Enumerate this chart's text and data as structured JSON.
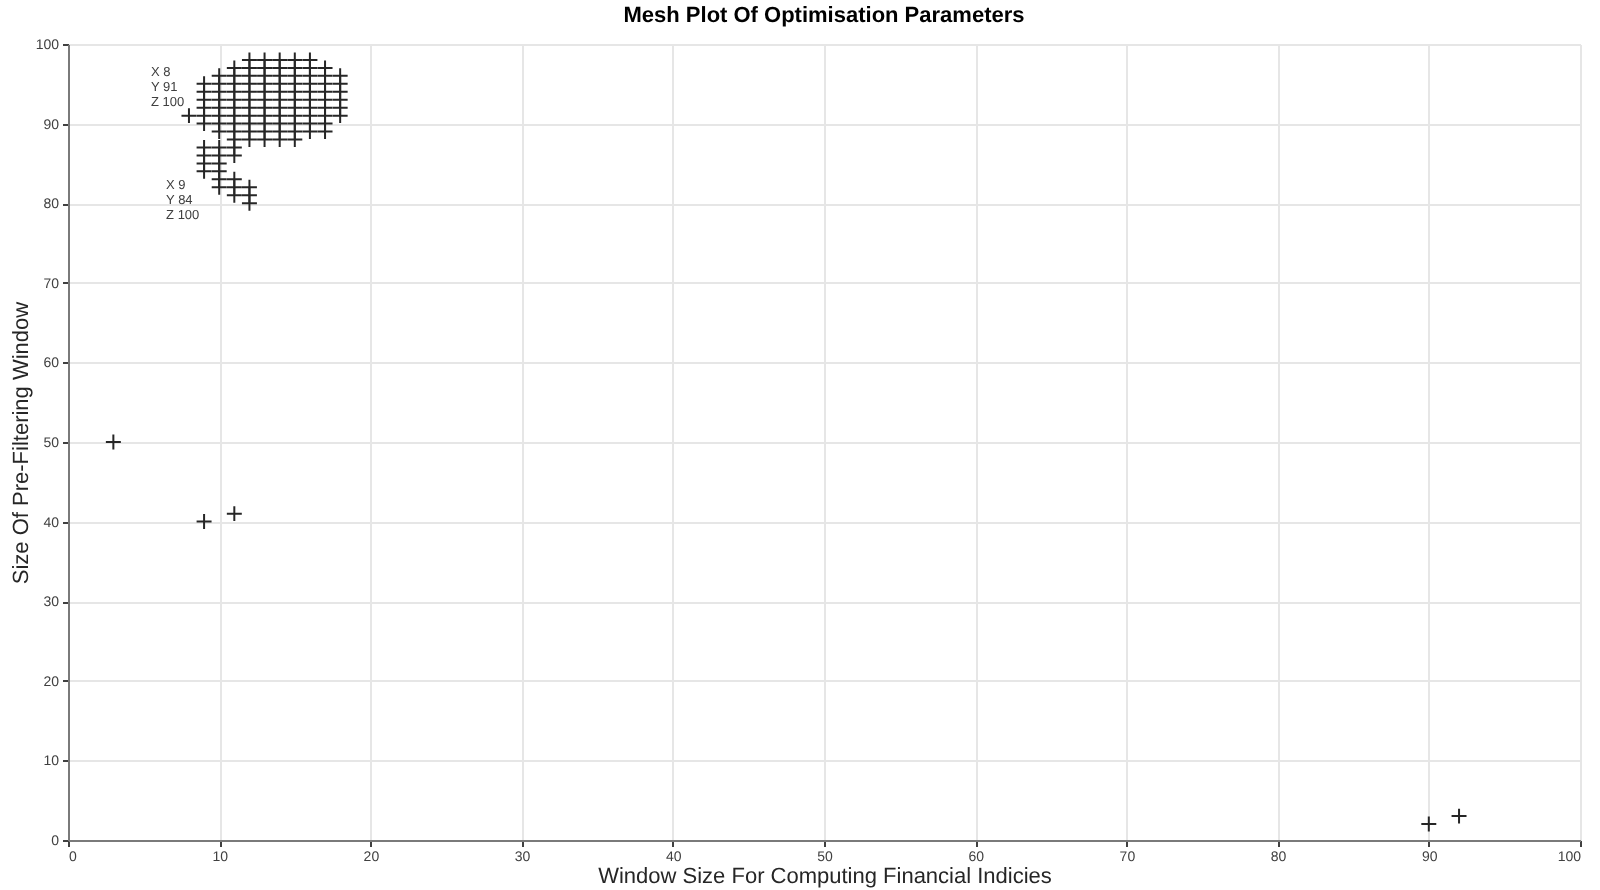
{
  "chart_data": {
    "type": "scatter",
    "title": "Mesh Plot Of Optimisation Parameters",
    "xlabel": "Window Size For Computing Financial Indicies",
    "ylabel": "Size Of Pre-Filtering Window",
    "series": [
      {
        "color": "#262626",
        "x": [
          12,
          13,
          14,
          15,
          16,
          11,
          12,
          13,
          14,
          15,
          16,
          17,
          10,
          11,
          12,
          13,
          14,
          15,
          16,
          17,
          18,
          9,
          10,
          11,
          12,
          13,
          14,
          15,
          16,
          17,
          18,
          9,
          10,
          11,
          12,
          13,
          14,
          15,
          16,
          17,
          18,
          9,
          10,
          11,
          12,
          13,
          14,
          15,
          16,
          17,
          18,
          9,
          10,
          11,
          12,
          13,
          14,
          15,
          16,
          17,
          18,
          8,
          9,
          10,
          11,
          12,
          13,
          14,
          15,
          16,
          17,
          18,
          9,
          10,
          11,
          12,
          13,
          14,
          15,
          16,
          17,
          10,
          11,
          12,
          13,
          14,
          15,
          16,
          17,
          11,
          12,
          13,
          14,
          15,
          9,
          10,
          11,
          9,
          10,
          11,
          9,
          10,
          9,
          10,
          10,
          11,
          10,
          11,
          12,
          11,
          12,
          12,
          3,
          9,
          11,
          90,
          92
        ],
        "values": [
          98,
          98,
          98,
          98,
          98,
          97,
          97,
          97,
          97,
          97,
          97,
          97,
          96,
          96,
          96,
          96,
          96,
          96,
          96,
          96,
          96,
          95,
          95,
          95,
          95,
          95,
          95,
          95,
          95,
          95,
          95,
          94,
          94,
          94,
          94,
          94,
          94,
          94,
          94,
          94,
          94,
          93,
          93,
          93,
          93,
          93,
          93,
          93,
          93,
          93,
          93,
          92,
          92,
          92,
          92,
          92,
          92,
          92,
          92,
          92,
          92,
          91,
          91,
          91,
          91,
          91,
          91,
          91,
          91,
          91,
          91,
          91,
          90,
          90,
          90,
          90,
          90,
          90,
          90,
          90,
          90,
          89,
          89,
          89,
          89,
          89,
          89,
          89,
          89,
          88,
          88,
          88,
          88,
          88,
          87,
          87,
          87,
          86,
          86,
          86,
          85,
          85,
          84,
          84,
          83,
          83,
          82,
          82,
          82,
          81,
          81,
          80,
          50,
          40,
          41,
          2,
          3
        ]
      }
    ],
    "xlim": [
      0,
      100
    ],
    "ylim": [
      0,
      100
    ],
    "xticks": [
      0,
      10,
      20,
      30,
      40,
      50,
      60,
      70,
      80,
      90,
      100
    ],
    "yticks": [
      0,
      10,
      20,
      30,
      40,
      50,
      60,
      70,
      80,
      90,
      100
    ],
    "grid": true,
    "marker": "cross",
    "annotations": [
      {
        "text": "X 8\nY 91\nZ 100",
        "x": 8,
        "y": 91
      },
      {
        "text": "X 9\nY 84\nZ 100",
        "x": 9,
        "y": 84
      }
    ]
  }
}
